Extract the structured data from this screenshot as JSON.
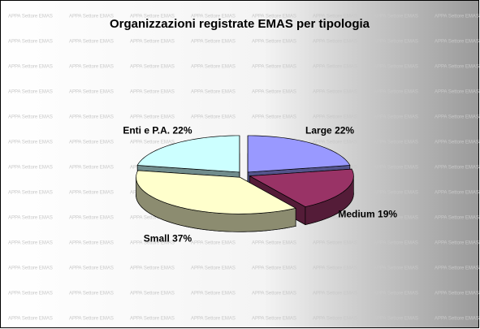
{
  "chart_data": {
    "type": "pie3d",
    "title": "Organizzazioni registrate EMAS per tipologia",
    "watermark": "APPA Settore EMAS",
    "categories": [
      "Large",
      "Medium",
      "Small",
      "Enti e P.A."
    ],
    "values": [
      22,
      19,
      37,
      22
    ],
    "value_labels": [
      "22%",
      "19%",
      "37%",
      "22%"
    ],
    "colors": [
      "#9999ff",
      "#993366",
      "#ffffcc",
      "#ccffff"
    ]
  }
}
